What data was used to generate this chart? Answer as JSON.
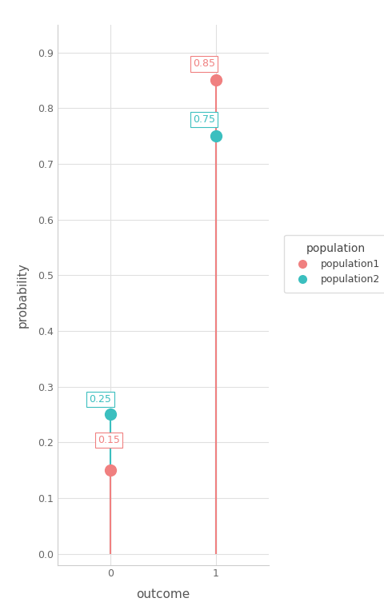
{
  "population1": {
    "x": [
      0,
      1
    ],
    "y": [
      0.15,
      0.85
    ],
    "color": "#F08080",
    "label": "population1"
  },
  "population2": {
    "x": [
      0,
      1
    ],
    "y": [
      0.25,
      0.75
    ],
    "color": "#3BBFBF",
    "label": "population2"
  },
  "xlabel": "outcome",
  "ylabel": "probability",
  "legend_title": "population",
  "ylim": [
    -0.02,
    0.95
  ],
  "xlim": [
    -0.5,
    1.5
  ],
  "yticks": [
    0.0,
    0.1,
    0.2,
    0.3,
    0.4,
    0.5,
    0.6,
    0.7,
    0.8,
    0.9
  ],
  "xticks": [
    0,
    1
  ],
  "background_color": "#ffffff",
  "grid_color": "#e0e0e0",
  "marker_size": 10,
  "line_width": 1.5,
  "annotation_fontsize": 9
}
